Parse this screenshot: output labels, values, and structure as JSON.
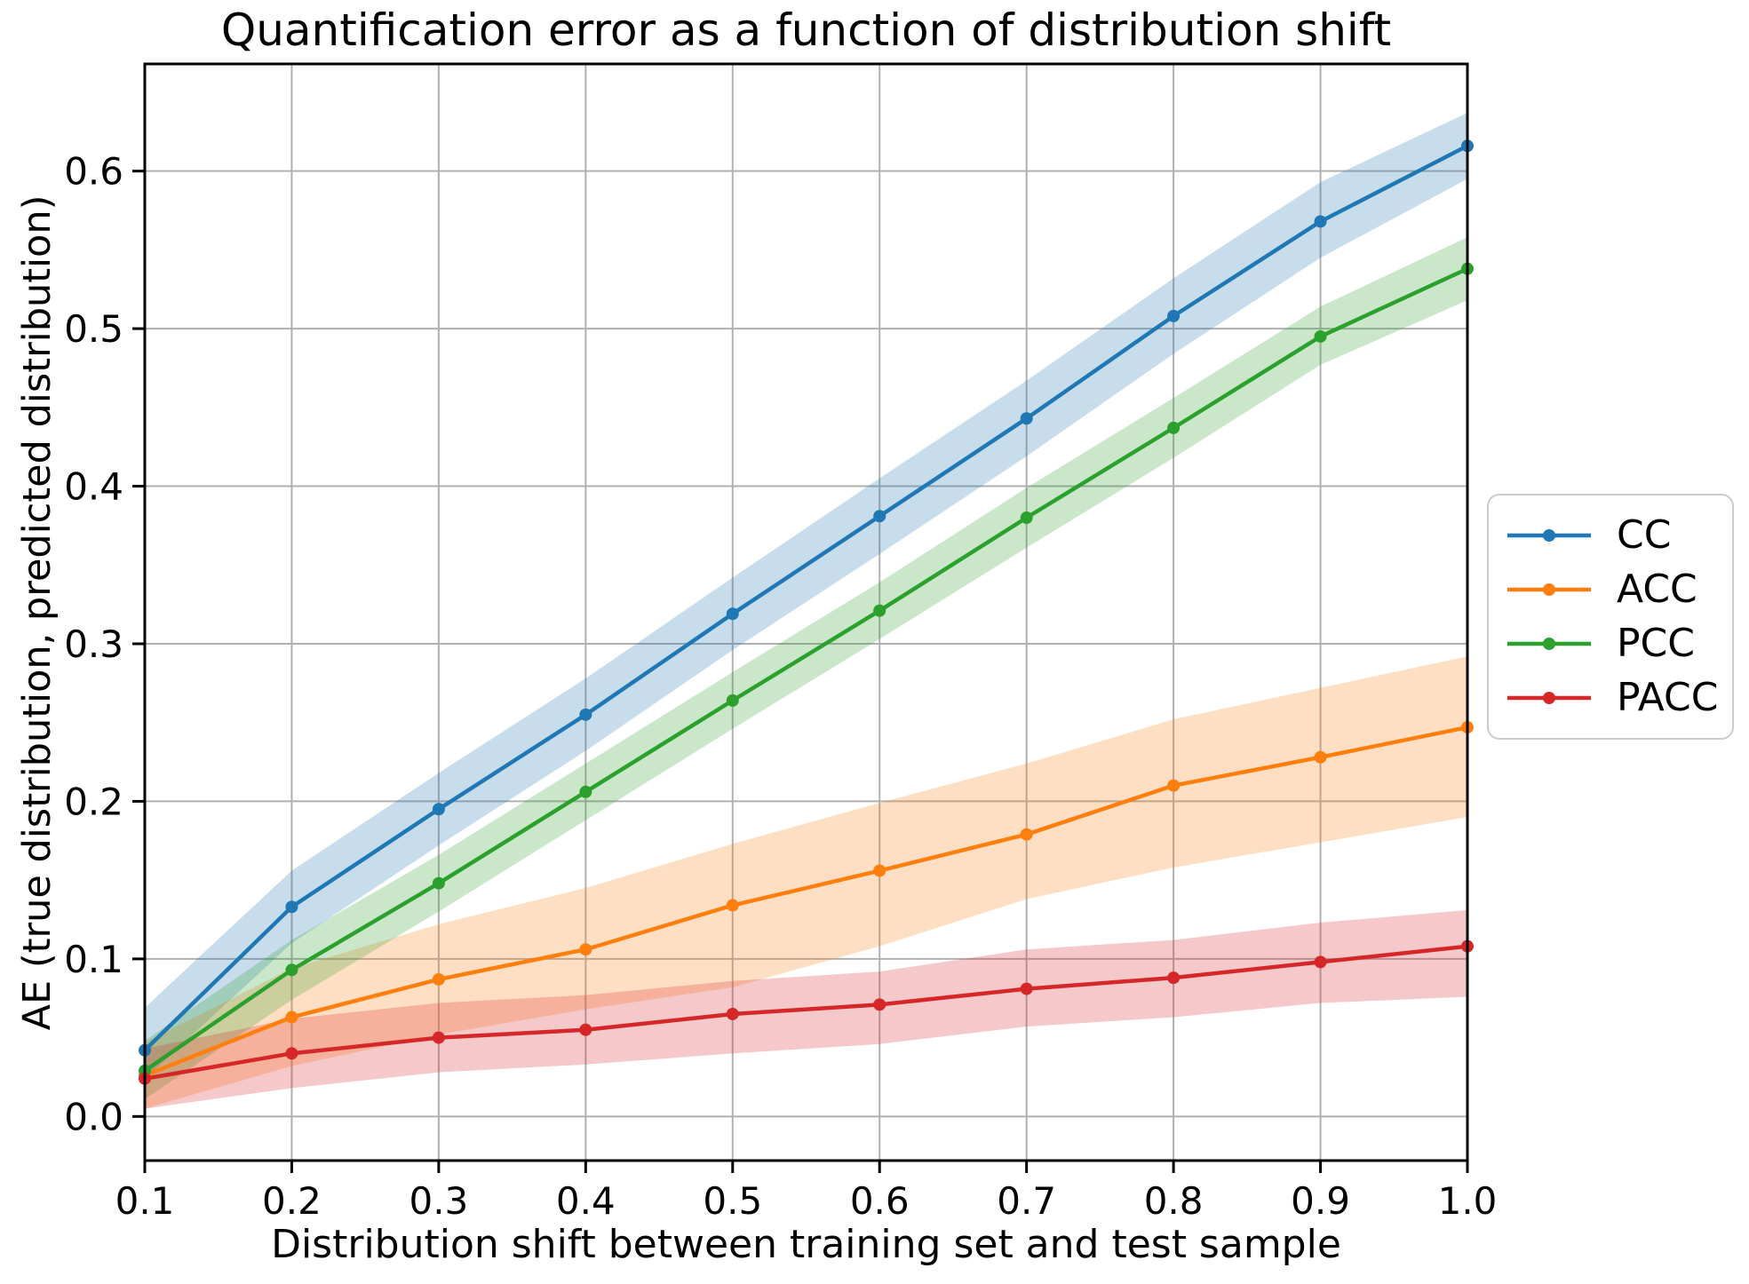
{
  "chart_data": {
    "type": "line",
    "title": "Quantification error as a function of distribution shift",
    "xlabel": "Distribution shift between training set and test sample",
    "ylabel": "AE (true distribution, predicted distribution)",
    "x": [
      0.1,
      0.2,
      0.3,
      0.4,
      0.5,
      0.6,
      0.7,
      0.8,
      0.9,
      1.0
    ],
    "xtick_labels": [
      "0.1",
      "0.2",
      "0.3",
      "0.4",
      "0.5",
      "0.6",
      "0.7",
      "0.8",
      "0.9",
      "1.0"
    ],
    "ytick_labels": [
      "0.0",
      "0.1",
      "0.2",
      "0.3",
      "0.4",
      "0.5",
      "0.6"
    ],
    "xlim": [
      0.1,
      1.0
    ],
    "ylim": [
      -0.028,
      0.668
    ],
    "grid": true,
    "grid_color": "#b0b0b0",
    "band_alpha": 0.25,
    "legend_position": "outside-right",
    "series": [
      {
        "name": "CC",
        "color": "#1f77b4",
        "values": [
          0.042,
          0.133,
          0.195,
          0.255,
          0.319,
          0.381,
          0.443,
          0.508,
          0.568,
          0.616
        ],
        "band_lower": [
          0.024,
          0.11,
          0.172,
          0.232,
          0.296,
          0.357,
          0.419,
          0.484,
          0.545,
          0.595
        ],
        "band_upper": [
          0.069,
          0.156,
          0.218,
          0.278,
          0.342,
          0.405,
          0.467,
          0.532,
          0.593,
          0.637
        ]
      },
      {
        "name": "ACC",
        "color": "#ff7f0e",
        "values": [
          0.026,
          0.063,
          0.087,
          0.106,
          0.134,
          0.156,
          0.179,
          0.21,
          0.228,
          0.247
        ],
        "band_lower": [
          0.005,
          0.032,
          0.052,
          0.068,
          0.082,
          0.108,
          0.138,
          0.158,
          0.174,
          0.19
        ],
        "band_upper": [
          0.047,
          0.094,
          0.122,
          0.145,
          0.173,
          0.199,
          0.224,
          0.252,
          0.272,
          0.292
        ]
      },
      {
        "name": "PCC",
        "color": "#2ca02c",
        "values": [
          0.029,
          0.093,
          0.148,
          0.206,
          0.264,
          0.321,
          0.38,
          0.437,
          0.495,
          0.538
        ],
        "band_lower": [
          0.011,
          0.074,
          0.13,
          0.188,
          0.246,
          0.303,
          0.361,
          0.418,
          0.477,
          0.518
        ],
        "band_upper": [
          0.048,
          0.112,
          0.166,
          0.224,
          0.282,
          0.339,
          0.399,
          0.456,
          0.514,
          0.558
        ]
      },
      {
        "name": "PACC",
        "color": "#d62728",
        "values": [
          0.024,
          0.04,
          0.05,
          0.055,
          0.065,
          0.071,
          0.081,
          0.088,
          0.098,
          0.108
        ],
        "band_lower": [
          0.005,
          0.018,
          0.028,
          0.033,
          0.04,
          0.046,
          0.057,
          0.063,
          0.072,
          0.076
        ],
        "band_upper": [
          0.043,
          0.062,
          0.072,
          0.077,
          0.086,
          0.092,
          0.106,
          0.112,
          0.123,
          0.131
        ]
      }
    ]
  }
}
